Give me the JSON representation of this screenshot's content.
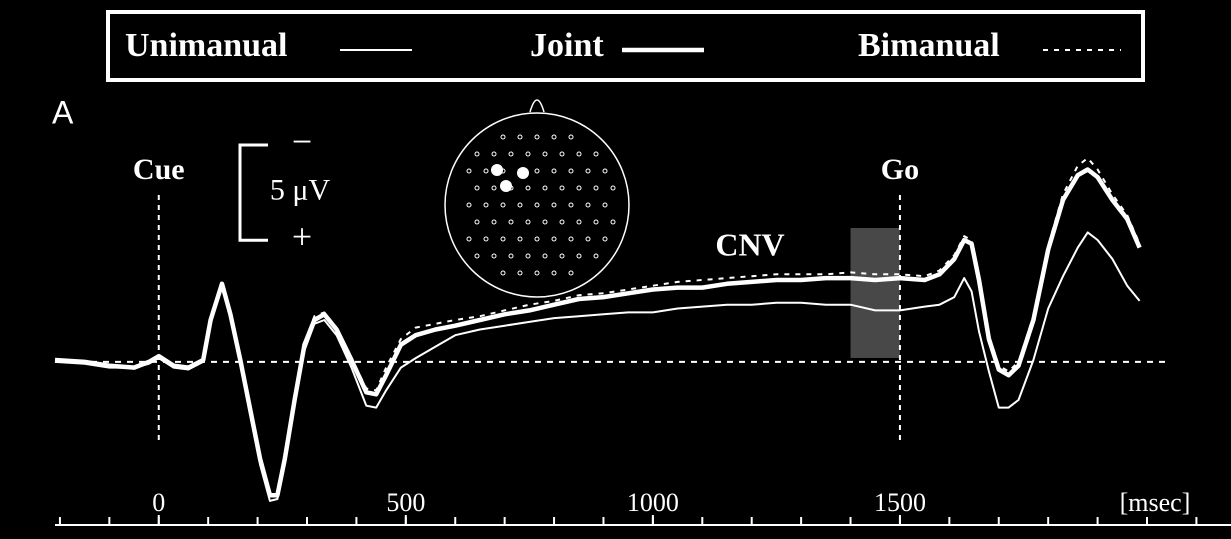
{
  "chart_data": {
    "type": "line",
    "panel_label": "A",
    "x_unit": "[msec]",
    "xlim": [
      -210,
      2170
    ],
    "ylim": [
      -19,
      9.3
    ],
    "xticks": [
      0,
      500,
      1000,
      1500
    ],
    "xminorticks": [
      -200,
      -100,
      0,
      100,
      200,
      300,
      400,
      500,
      600,
      700,
      800,
      900,
      1000,
      1100,
      1200,
      1300,
      1400,
      1500,
      1600,
      1700,
      1800,
      1900,
      2000,
      2100
    ],
    "scale_bar": {
      "value": 5,
      "label": "5 μV",
      "negative_label": "−",
      "positive_label": "+"
    },
    "events": [
      {
        "label": "Cue",
        "x": 0
      },
      {
        "label": "Go",
        "x": 1500
      }
    ],
    "annotation": "CNV",
    "shaded_window": [
      1400,
      1500
    ],
    "baseline": 0,
    "x": [
      -210,
      -150,
      -100,
      -50,
      -20,
      0,
      30,
      60,
      90,
      105,
      128,
      145,
      165,
      185,
      205,
      225,
      240,
      255,
      275,
      295,
      315,
      335,
      360,
      390,
      420,
      440,
      460,
      490,
      520,
      560,
      600,
      650,
      700,
      750,
      800,
      850,
      900,
      950,
      1000,
      1050,
      1100,
      1150,
      1200,
      1250,
      1300,
      1350,
      1400,
      1450,
      1500,
      1550,
      1580,
      1610,
      1630,
      1645,
      1660,
      1680,
      1700,
      1720,
      1740,
      1770,
      1800,
      1830,
      1860,
      1880,
      1900,
      1930,
      1960,
      1985
    ],
    "series": [
      {
        "name": "Unimanual",
        "color": "#ffffff",
        "width": 2,
        "dash": "none",
        "values": [
          0,
          0.1,
          0.3,
          0.3,
          0.1,
          -0.2,
          0.3,
          0.4,
          0,
          -2.0,
          -4.0,
          -2.3,
          0.1,
          2.8,
          5.4,
          7.3,
          7.2,
          5.3,
          2.1,
          -0.6,
          -2.0,
          -2.2,
          -1.4,
          0.3,
          2.3,
          2.4,
          1.5,
          0.3,
          -0.2,
          -0.8,
          -1.4,
          -1.7,
          -1.9,
          -2.1,
          -2.3,
          -2.4,
          -2.5,
          -2.6,
          -2.6,
          -2.8,
          -2.9,
          -3.0,
          -3.0,
          -3.1,
          -3.1,
          -3.0,
          -3.0,
          -2.7,
          -2.7,
          -2.9,
          -3.0,
          -3.4,
          -4.4,
          -3.7,
          -1.6,
          0.5,
          2.4,
          2.4,
          2.0,
          -0.1,
          -2.8,
          -4.5,
          -6.0,
          -6.8,
          -6.4,
          -5.4,
          -4.0,
          -3.2
        ]
      },
      {
        "name": "Joint",
        "color": "#ffffff",
        "width": 4.5,
        "dash": "none",
        "values": [
          -0.1,
          0,
          0.2,
          0.3,
          0,
          -0.3,
          0.2,
          0.3,
          -0.1,
          -2.2,
          -4.1,
          -2.5,
          -0.1,
          2.5,
          5.1,
          7.0,
          7.0,
          5.1,
          2.0,
          -0.9,
          -2.2,
          -2.5,
          -1.7,
          -0.1,
          1.6,
          1.7,
          0.7,
          -0.9,
          -1.4,
          -1.7,
          -1.9,
          -2.2,
          -2.5,
          -2.7,
          -3.0,
          -3.3,
          -3.4,
          -3.6,
          -3.8,
          -3.9,
          -3.9,
          -4.1,
          -4.2,
          -4.3,
          -4.3,
          -4.4,
          -4.4,
          -4.3,
          -4.4,
          -4.3,
          -4.6,
          -5.4,
          -6.4,
          -6.2,
          -4.3,
          -1.2,
          0.4,
          0.7,
          0.2,
          -2.2,
          -5.9,
          -8.5,
          -9.8,
          -10.1,
          -9.7,
          -8.5,
          -7.5,
          -6.0
        ]
      },
      {
        "name": "Bimanual",
        "color": "#ffffff",
        "width": 2,
        "dash": "5 6",
        "values": [
          -0.1,
          0,
          0.2,
          0.3,
          0,
          -0.3,
          0.2,
          0.3,
          -0.1,
          -2.3,
          -4.3,
          -2.6,
          -0.1,
          2.5,
          5.0,
          6.8,
          6.8,
          5.0,
          1.9,
          -1.0,
          -2.4,
          -2.6,
          -1.8,
          -0.2,
          1.4,
          1.5,
          0.3,
          -1.2,
          -1.8,
          -2.0,
          -2.2,
          -2.4,
          -2.7,
          -3.0,
          -3.2,
          -3.5,
          -3.6,
          -3.8,
          -4.0,
          -4.2,
          -4.3,
          -4.4,
          -4.5,
          -4.6,
          -4.6,
          -4.6,
          -4.7,
          -4.6,
          -4.6,
          -4.5,
          -4.8,
          -5.6,
          -6.6,
          -6.4,
          -4.5,
          -1.4,
          0.2,
          0.5,
          0,
          -2.4,
          -6.1,
          -8.8,
          -10.3,
          -10.7,
          -10.1,
          -8.8,
          -7.7,
          -6.2
        ]
      }
    ]
  }
}
